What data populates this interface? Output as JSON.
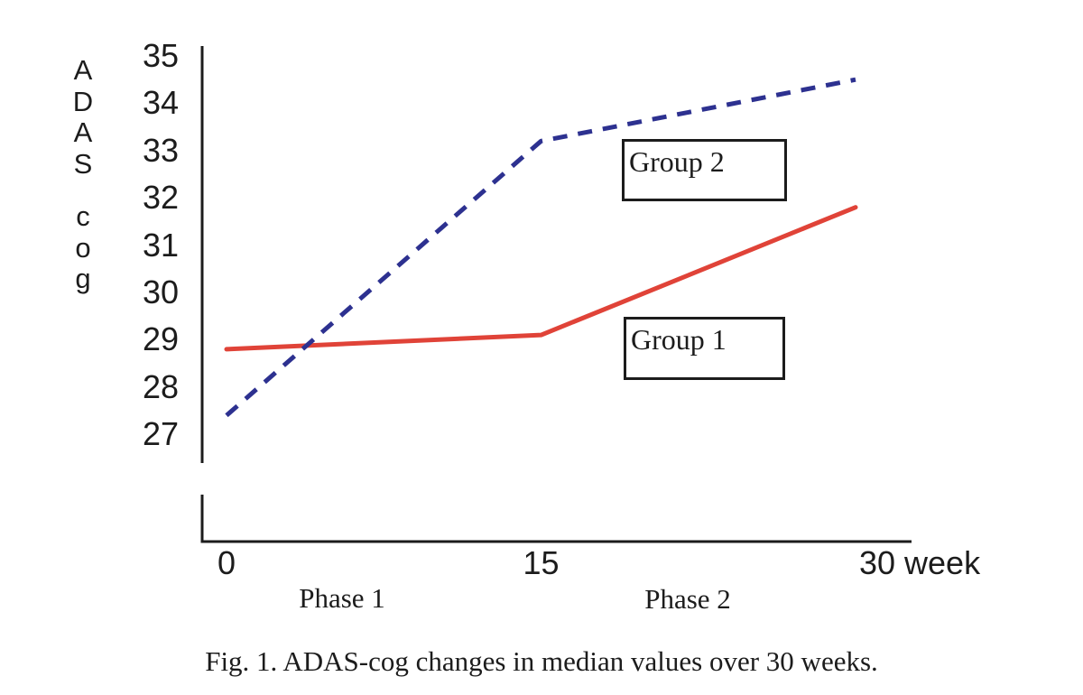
{
  "figure": {
    "caption": "Fig. 1. ADAS-cog changes in median values over 30 weeks.",
    "phase_labels": [
      "Phase 1",
      "Phase 2"
    ]
  },
  "chart_data": {
    "type": "line",
    "title": "",
    "xlabel": "week",
    "ylabel": "ADAS cog",
    "x": [
      0,
      15,
      30
    ],
    "x_tick_labels": [
      "0",
      "15",
      "30"
    ],
    "y_ticks": [
      27,
      28,
      29,
      30,
      31,
      32,
      33,
      34,
      35
    ],
    "ylim": [
      26.6,
      35.2
    ],
    "xlim": [
      0,
      32
    ],
    "grid": false,
    "legend_position": "boxed labels inside plot area",
    "series": [
      {
        "name": "Group 1",
        "style": "solid",
        "color": "#e04338",
        "values": [
          28.8,
          29.1,
          31.8
        ]
      },
      {
        "name": "Group 2",
        "style": "dashed",
        "color": "#2d3190",
        "values": [
          27.4,
          33.2,
          34.5
        ]
      }
    ],
    "colors": {
      "axis": "#1c1c1c",
      "background": "#ffffff"
    }
  }
}
